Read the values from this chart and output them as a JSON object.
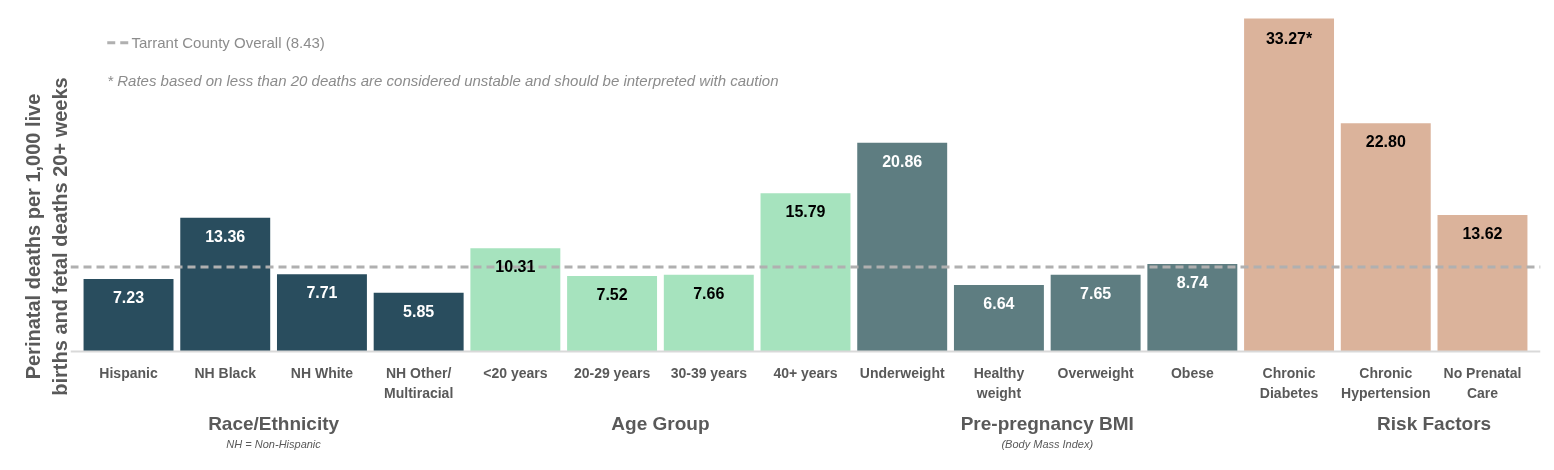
{
  "chart_data": {
    "type": "bar",
    "ylabel": "Perinatal deaths per 1,000 live\nbirths and fetal deaths 20+ weeks",
    "categories": [
      "Hispanic",
      "NH Black",
      "NH White",
      "NH Other/\nMultiracial",
      "<20 years",
      "20-29 years",
      "30-39 years",
      "40+ years",
      "Underweight",
      "Healthy\nweight",
      "Overweight",
      "Obese",
      "Chronic\nDiabetes",
      "Chronic\nHypertension",
      "No Prenatal\nCare"
    ],
    "values": [
      7.23,
      13.36,
      7.71,
      5.85,
      10.31,
      7.52,
      7.66,
      15.79,
      20.86,
      6.64,
      7.65,
      8.74,
      33.27,
      22.8,
      13.62
    ],
    "value_labels": [
      "7.23",
      "13.36",
      "7.71",
      "5.85",
      "10.31",
      "7.52",
      "7.66",
      "15.79",
      "20.86",
      "6.64",
      "7.65",
      "8.74",
      "33.27*",
      "22.80",
      "13.62"
    ],
    "colors": [
      "#294d5e",
      "#294d5e",
      "#294d5e",
      "#294d5e",
      "#a6e3be",
      "#a6e3be",
      "#a6e3be",
      "#a6e3be",
      "#5e7d81",
      "#5e7d81",
      "#5e7d81",
      "#5e7d81",
      "#dbb39b",
      "#dbb39b",
      "#dbb39b"
    ],
    "tick_labels": "x",
    "grid": false,
    "ref_lines": [
      {
        "axis": "y",
        "value": 8.43,
        "label": "Tarrant County Overall (8.43)",
        "color": "#b0b0b0",
        "line_style": "dashed"
      }
    ],
    "annotations": [
      "* Rates based on less than 20 deaths are considered unstable and should be interpreted with caution",
      "Race/Ethnicity",
      "NH = Non-Hispanic",
      "Age Group",
      "Pre-pregnancy BMI",
      "(Body Mass Index)",
      "Risk Factors"
    ]
  }
}
